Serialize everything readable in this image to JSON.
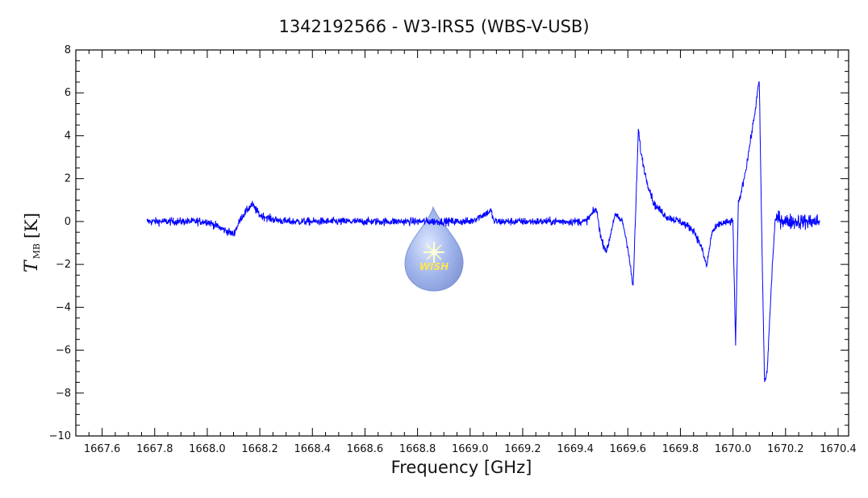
{
  "chart_data": {
    "type": "line",
    "title": "1342192566 - W3-IRS5 (WBS-V-USB)",
    "xlabel": "Frequency [GHz]",
    "ylabel": {
      "symbol": "T",
      "subscript": "MB",
      "unit": "[K]"
    },
    "xlim": [
      1667.5,
      1670.44
    ],
    "ylim": [
      -10,
      8
    ],
    "x_ticks": [
      1667.6,
      1667.8,
      1668.0,
      1668.2,
      1668.4,
      1668.6,
      1668.8,
      1669.0,
      1669.2,
      1669.4,
      1669.6,
      1669.8,
      1670.0,
      1670.2,
      1670.4
    ],
    "x_tick_labels": [
      "1667.6",
      "1667.8",
      "1668.0",
      "1668.2",
      "1668.4",
      "1668.6",
      "1668.8",
      "1669.0",
      "1669.2",
      "1669.4",
      "1669.6",
      "1669.8",
      "1670.0",
      "1670.2",
      "1670.4"
    ],
    "y_ticks": [
      -10,
      -8,
      -6,
      -4,
      -2,
      0,
      2,
      4,
      6,
      8
    ],
    "y_tick_labels": [
      "−10",
      "−8",
      "−6",
      "−4",
      "−2",
      "0",
      "2",
      "4",
      "6",
      "8"
    ],
    "grid": false,
    "series": [
      {
        "color": "#0000ff",
        "noise": 0.18,
        "x": [
          1667.77,
          1667.9,
          1668.0,
          1668.05,
          1668.1,
          1668.13,
          1668.17,
          1668.2,
          1668.25,
          1668.3,
          1668.6,
          1669.0,
          1669.08,
          1669.09,
          1669.1,
          1669.3,
          1669.44,
          1669.48,
          1669.5,
          1669.52,
          1669.55,
          1669.58,
          1669.6,
          1669.62,
          1669.63,
          1669.64,
          1669.65,
          1669.67,
          1669.7,
          1669.75,
          1669.8,
          1669.85,
          1669.88,
          1669.9,
          1669.92,
          1669.95,
          1670.0,
          1670.01,
          1670.02,
          1670.03,
          1670.05,
          1670.08,
          1670.1,
          1670.11,
          1670.12,
          1670.13,
          1670.15,
          1670.16,
          1670.17,
          1670.2,
          1670.3,
          1670.33
        ],
        "y": [
          0.0,
          0.0,
          0.0,
          -0.3,
          -0.6,
          0.2,
          0.8,
          0.3,
          0.1,
          0.0,
          0.0,
          0.0,
          0.5,
          0.0,
          0.0,
          0.0,
          0.0,
          0.6,
          -0.9,
          -1.4,
          0.3,
          0.0,
          -1.2,
          -3.1,
          0.5,
          4.3,
          3.2,
          2.0,
          0.8,
          0.2,
          0.0,
          -0.4,
          -1.2,
          -2.1,
          -0.5,
          -0.1,
          0.0,
          -5.8,
          0.8,
          1.3,
          2.5,
          4.8,
          6.6,
          -1.0,
          -7.5,
          -7.0,
          -2.0,
          0.0,
          0.2,
          0.0,
          0.0,
          0.0
        ]
      }
    ]
  },
  "logo": {
    "text": "WISH"
  }
}
